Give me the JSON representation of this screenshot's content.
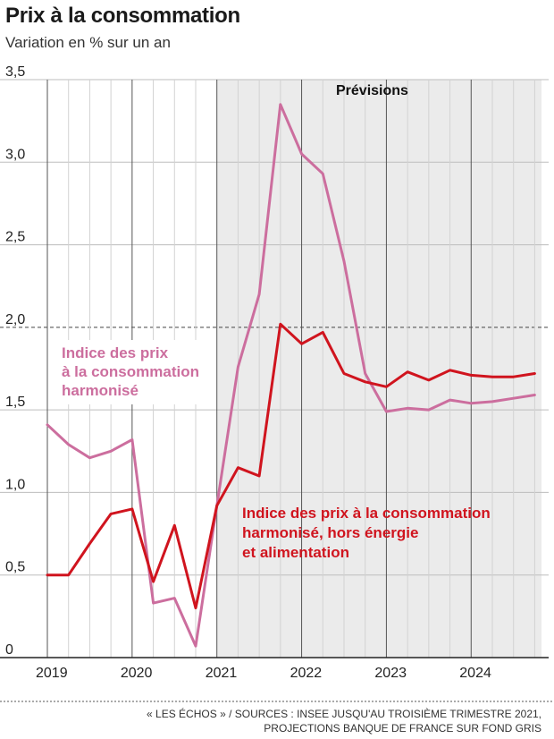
{
  "title": "Prix à la consommation",
  "subtitle": "Variation en % sur un an",
  "footnote": [
    "« LES ÉCHOS » / SOURCES : INSEE JUSQU'AU TROISIÈME TRIMESTRE 2021,",
    "PROJECTIONS BANQUE DE FRANCE SUR FOND GRIS"
  ],
  "chart_data": {
    "type": "line",
    "title": "Prix à la consommation",
    "subtitle": "Variation en % sur un an",
    "ylim": [
      0,
      3.5
    ],
    "yticks": [
      0,
      0.5,
      1.0,
      1.5,
      2.0,
      2.5,
      3.0,
      3.5
    ],
    "ytick_labels": [
      "0",
      "0,5",
      "1,0",
      "1,5",
      "2,0",
      "2,5",
      "3,0",
      "3,5"
    ],
    "xlim": [
      2019,
      2024.83
    ],
    "xticks": [
      2019,
      2020,
      2021,
      2022,
      2023,
      2024
    ],
    "xtick_labels": [
      "2019",
      "2020",
      "2021",
      "2022",
      "2023",
      "2024"
    ],
    "reference_line": 2.0,
    "forecast_region": {
      "start": 2021,
      "label": "Prévisions",
      "color": "#ebebeb"
    },
    "series": [
      {
        "name": "Indice des prix à la consommation harmonisé",
        "label_lines": [
          "Indice des prix",
          "à la consommation",
          "harmonisé"
        ],
        "color": "#cc6e9e",
        "x": [
          2019,
          2019.25,
          2019.5,
          2019.75,
          2020,
          2020.25,
          2020.5,
          2020.75,
          2021,
          2021.25,
          2021.5,
          2021.75,
          2022,
          2022.25,
          2022.5,
          2022.75,
          2023,
          2023.25,
          2023.5,
          2023.75,
          2024,
          2024.25,
          2024.5,
          2024.75
        ],
        "values": [
          1.41,
          1.29,
          1.21,
          1.25,
          1.32,
          0.33,
          0.36,
          0.07,
          0.92,
          1.76,
          2.2,
          3.35,
          3.05,
          2.93,
          2.4,
          1.72,
          1.49,
          1.51,
          1.5,
          1.56,
          1.54,
          1.55,
          1.57,
          1.59
        ]
      },
      {
        "name": "Indice des prix à la consommation harmonisé, hors énergie et alimentation",
        "label_lines": [
          "Indice des prix à la consommation",
          "harmonisé, hors énergie",
          "et alimentation"
        ],
        "color": "#d0141e",
        "x": [
          2019,
          2019.25,
          2019.5,
          2019.75,
          2020,
          2020.25,
          2020.5,
          2020.75,
          2021,
          2021.25,
          2021.5,
          2021.75,
          2022,
          2022.25,
          2022.5,
          2022.75,
          2023,
          2023.25,
          2023.5,
          2023.75,
          2024,
          2024.25,
          2024.5,
          2024.75
        ],
        "values": [
          0.5,
          0.5,
          0.69,
          0.87,
          0.9,
          0.46,
          0.8,
          0.3,
          0.92,
          1.15,
          1.1,
          2.02,
          1.9,
          1.97,
          1.72,
          1.67,
          1.64,
          1.73,
          1.68,
          1.74,
          1.71,
          1.7,
          1.7,
          1.72
        ]
      }
    ]
  }
}
